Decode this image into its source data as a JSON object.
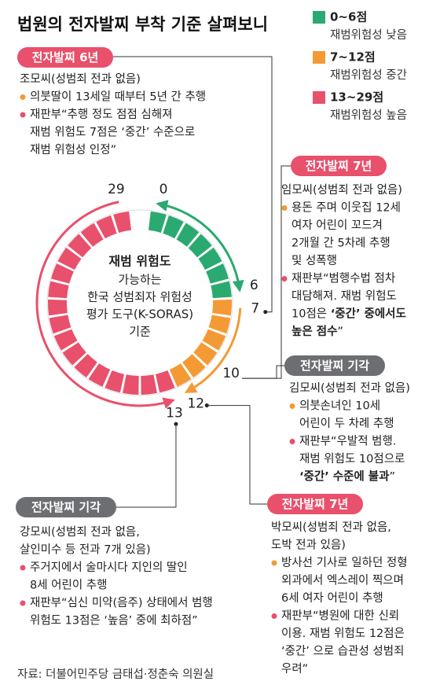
{
  "title": "법원의 전자발찌 부착 기준 살펴보니",
  "legend": [
    {
      "range": "0~6점",
      "desc": "재범위험성 낮음",
      "color": "#2aa970"
    },
    {
      "range": "7~12점",
      "desc": "재범위험성 중간",
      "color": "#f49a34"
    },
    {
      "range": "13~29점",
      "desc": "재범위험성 높음",
      "color": "#e8506b"
    }
  ],
  "ring": {
    "center_title": "재범 위험도",
    "center_lines": [
      "가능하는",
      "한국 성범죄자 위험성",
      "평가 도구(K-SORAS)",
      "기준"
    ],
    "labels": [
      0,
      6,
      7,
      10,
      12,
      13,
      29
    ]
  },
  "cases": [
    {
      "tag": "전자발찌 6년",
      "tag_color": "#e8506b",
      "person": [
        "조모씨(성범죄 전과 없음)"
      ],
      "items": [
        {
          "bullet_color": "#f49a34",
          "lines": [
            [
              "의붓딸이 13세일 때부터 5년 간 추행"
            ]
          ]
        },
        {
          "bullet_color": "#e8506b",
          "lines": [
            [
              "재판부“추행 정도 점점 심해져"
            ],
            [
              "재범 위험도 7점은 ‘중간’ 수준으로"
            ],
            [
              "재범 위험성 인정”"
            ]
          ]
        }
      ]
    },
    {
      "tag": "전자발찌 7년",
      "tag_color": "#e8506b",
      "person": [
        "임모씨(성범죄 전과 없음)"
      ],
      "items": [
        {
          "bullet_color": "#f49a34",
          "lines": [
            [
              "용돈 주며 이웃집 12세"
            ],
            [
              "여자 어린이 꼬드겨"
            ],
            [
              "2개월 간 5차례 추행"
            ],
            [
              "및 성폭행"
            ]
          ]
        },
        {
          "bullet_color": "#e8506b",
          "lines": [
            [
              "재판부“범행수법 점차"
            ],
            [
              "대담해져. 재범 위험도"
            ],
            [
              "10점은 ",
              {
                "text": "‘중간’ 중에서도",
                "bold": true
              }
            ],
            [
              {
                "text": "높은 점수",
                "bold": true
              },
              "”"
            ]
          ]
        }
      ]
    },
    {
      "tag": "전자발찌 기각",
      "tag_color": "#6d6e71",
      "person": [
        "김모씨(성범죄 전과 없음)"
      ],
      "items": [
        {
          "bullet_color": "#f49a34",
          "lines": [
            [
              "의붓손녀인 10세"
            ],
            [
              "어린이 두 차례 추행"
            ]
          ]
        },
        {
          "bullet_color": "#e8506b",
          "lines": [
            [
              "재판부“우발적 범행."
            ],
            [
              "재범 위험도 10점으로"
            ],
            [
              {
                "text": "‘중간’ 수준에 불과",
                "bold": true
              },
              "”"
            ]
          ]
        }
      ]
    },
    {
      "tag": "전자발찌 기각",
      "tag_color": "#6d6e71",
      "person": [
        "강모씨(성범죄 전과 없음,",
        "살인미수 등 전과 7개 있음)"
      ],
      "items": [
        {
          "bullet_color": "#e8506b",
          "lines": [
            [
              "주거지에서 술마시다 지인의 딸인"
            ],
            [
              "8세 어린이 추행"
            ]
          ]
        },
        {
          "bullet_color": "#e8506b",
          "lines": [
            [
              "재판부“심신 미약(음주) 상태에서 범행"
            ],
            [
              "위험도 13점은 ‘높음’ 중에 최하점”"
            ]
          ]
        }
      ]
    },
    {
      "tag": "전자발찌 7년",
      "tag_color": "#e8506b",
      "person": [
        "박모씨(성범죄 전과 없음,",
        "도박 전과 있음)"
      ],
      "items": [
        {
          "bullet_color": "#f49a34",
          "lines": [
            [
              "방사선 기사로 일하던 정형"
            ],
            [
              "외과에서 엑스레이 찍으며"
            ],
            [
              "6세 여자 어린이 추행"
            ]
          ]
        },
        {
          "bullet_color": "#e8506b",
          "lines": [
            [
              "재판부“병원에 대한 신뢰"
            ],
            [
              "이용. 재범 위험도 12점은"
            ],
            [
              "‘중간’ 으로 습관성 성범죄"
            ],
            [
              "우려”"
            ]
          ]
        }
      ]
    }
  ],
  "source": "자료: 더불어민주당 금태섭·정춘숙 의원실"
}
